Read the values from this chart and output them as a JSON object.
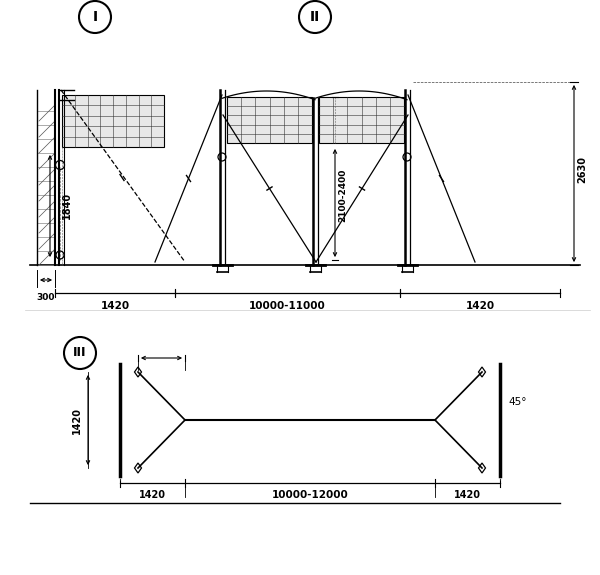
{
  "bg_color": "#ffffff",
  "line_color": "#000000",
  "title_I": "I",
  "title_II": "II",
  "title_III": "III",
  "dim_1840": "1840",
  "dim_2100_2400": "2100-2400",
  "dim_2630": "2630",
  "dim_300": "300",
  "dim_1420a": "1420",
  "dim_10000_11000": "10000-11000",
  "dim_1420b": "1420",
  "dim_1420_side": "1420",
  "dim_1420_bot": "1420",
  "dim_10000_12000": "10000-12000",
  "dim_1420_bot2": "1420",
  "dim_45": "45°"
}
